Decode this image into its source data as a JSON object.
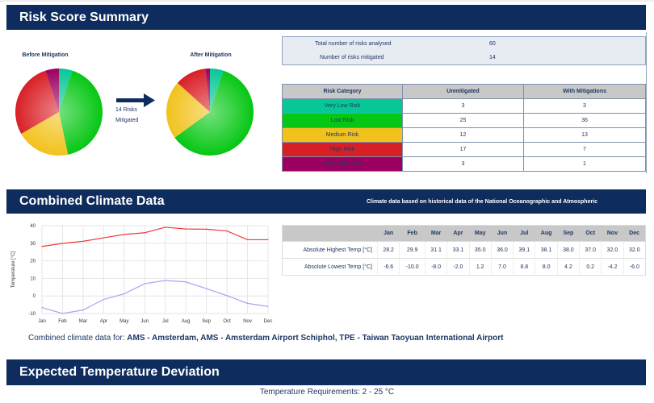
{
  "risk_summary": {
    "title": "Risk Score Summary",
    "before_label": "Before Mitigation",
    "after_label": "After Mitigation",
    "arrow_text_1": "14 Risks",
    "arrow_text_2": "Mitigated",
    "total_label": "Total number of risks analysed",
    "total_value": "60",
    "mitigated_label": "Number of risks mitigated",
    "mitigated_value": "14",
    "headers": [
      "Risk Category",
      "Unmitigated",
      "With Mitigations"
    ],
    "rows": [
      {
        "category": "Very Low Risk",
        "unmitigated": 3,
        "mitigated": 3,
        "color": "#06c896"
      },
      {
        "category": "Low Risk",
        "unmitigated": 25,
        "mitigated": 36,
        "color": "#05c714"
      },
      {
        "category": "Medium Risk",
        "unmitigated": 12,
        "mitigated": 13,
        "color": "#f2c21c"
      },
      {
        "category": "High Risk",
        "unmitigated": 17,
        "mitigated": 7,
        "color": "#d91f26"
      },
      {
        "category": "Very High Risk",
        "unmitigated": 3,
        "mitigated": 1,
        "color": "#9b0060"
      }
    ]
  },
  "climate": {
    "title": "Combined Climate Data",
    "subtitle": "Climate data based on historical data of the National Oceanographic and Atmospheric",
    "caption_prefix": "Combined climate data for: ",
    "caption_airports": "AMS - Amsterdam, AMS - Amsterdam Airport Schiphol, TPE - Taiwan Taoyuan International Airport",
    "row_high_label": "Absolute Highest Temp [°C]",
    "row_low_label": "Absolute Lowest Temp [°C]",
    "high_display": [
      "28.2",
      "29.9",
      "31.1",
      "33.1",
      "35.0",
      "36.0",
      "39.1",
      "38.1",
      "38.0",
      "37.0",
      "32.0",
      "32.0"
    ],
    "low_display": [
      "-6.6",
      "-10.0",
      "-8.0",
      "-2.0",
      "1.2",
      "7.0",
      "8.8",
      "8.0",
      "4.2",
      "0.2",
      "-4.2",
      "-6.0"
    ]
  },
  "chart_data": {
    "type": "line",
    "categories": [
      "Jan",
      "Feb",
      "Mar",
      "Apr",
      "May",
      "Jun",
      "Jul",
      "Aug",
      "Sep",
      "Oct",
      "Nov",
      "Dec"
    ],
    "series": [
      {
        "name": "Absolute Highest Temp",
        "color": "#f03a3a",
        "values": [
          28.2,
          29.9,
          31.1,
          33.1,
          35.0,
          36.0,
          39.1,
          38.1,
          38.0,
          37.0,
          32.0,
          32.0
        ]
      },
      {
        "name": "Absolute Lowest Temp",
        "color": "#a9a4ef",
        "values": [
          -6.6,
          -10.0,
          -8.0,
          -2.0,
          1.2,
          7.0,
          8.8,
          8.0,
          4.2,
          0.2,
          -4.2,
          -6.0
        ]
      }
    ],
    "ylabel": "Temperature [°C]",
    "yticks": [
      "40",
      "30",
      "20",
      "10",
      "0",
      "-10"
    ],
    "ylim": [
      -10,
      40
    ],
    "grid": true
  },
  "deviation": {
    "title": "Expected Temperature Deviation",
    "requirement": "Temperature Requirements: 2 - 25 °C"
  }
}
